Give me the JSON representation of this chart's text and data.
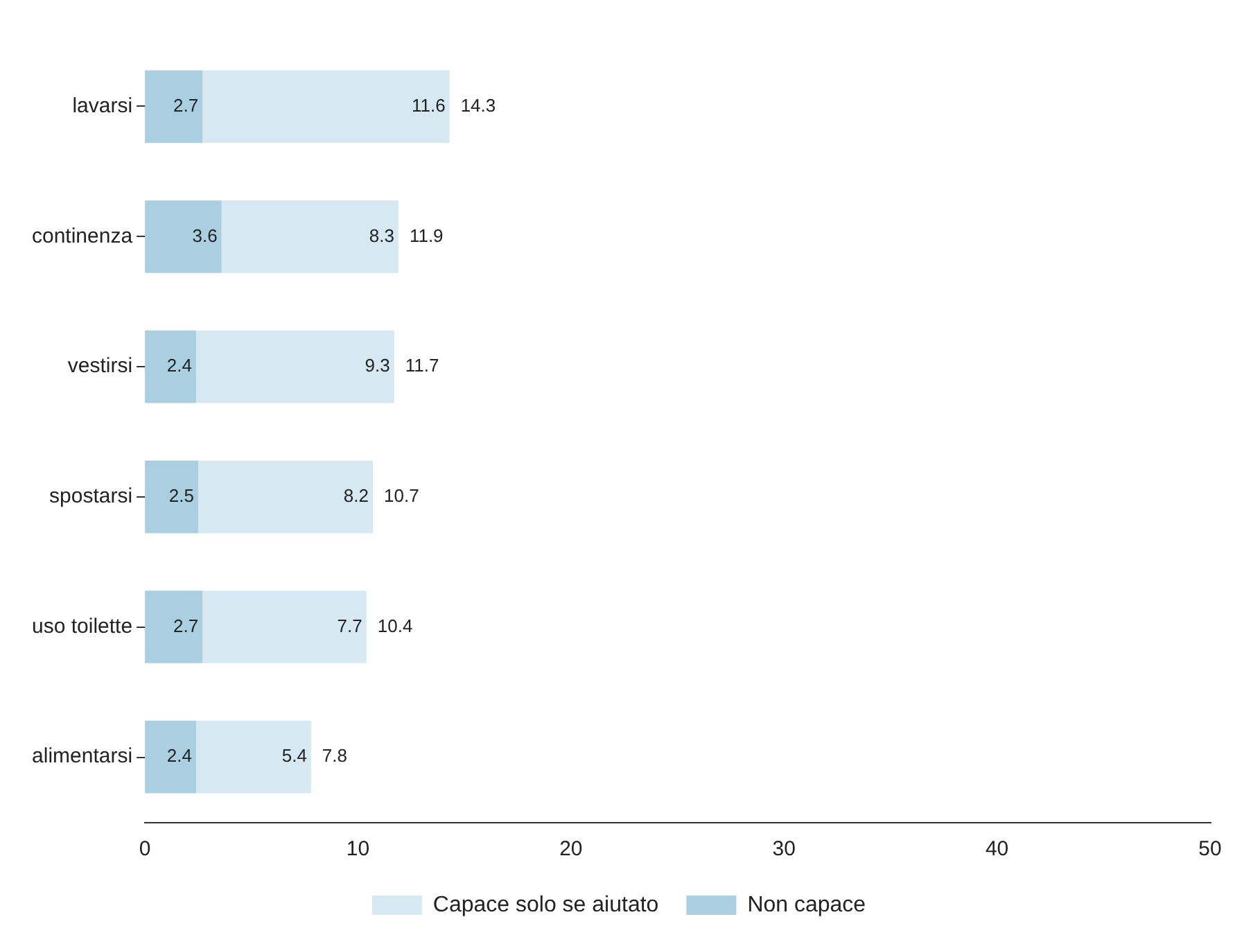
{
  "chart_data": {
    "type": "bar",
    "orientation": "horizontal",
    "stacked": true,
    "categories": [
      "lavarsi",
      "continenza",
      "vestirsi",
      "spostarsi",
      "uso toilette",
      "alimentarsi"
    ],
    "series": [
      {
        "name": "Non capace",
        "color": "#a9cfe0",
        "values": [
          2.7,
          3.6,
          2.4,
          2.5,
          2.7,
          2.4
        ]
      },
      {
        "name": "Capace solo se aiutato",
        "color": "#d6e9f2",
        "values": [
          11.6,
          8.3,
          9.3,
          8.2,
          7.7,
          5.4
        ]
      }
    ],
    "totals": [
      "14.3",
      "11.9",
      "11.7",
      "10.7",
      "10.4",
      "7.8"
    ],
    "data_labels": true,
    "xlim": [
      0,
      50
    ],
    "xticks": [
      0,
      10,
      20,
      30,
      40,
      50
    ],
    "grid": false,
    "legend": "bottom"
  }
}
